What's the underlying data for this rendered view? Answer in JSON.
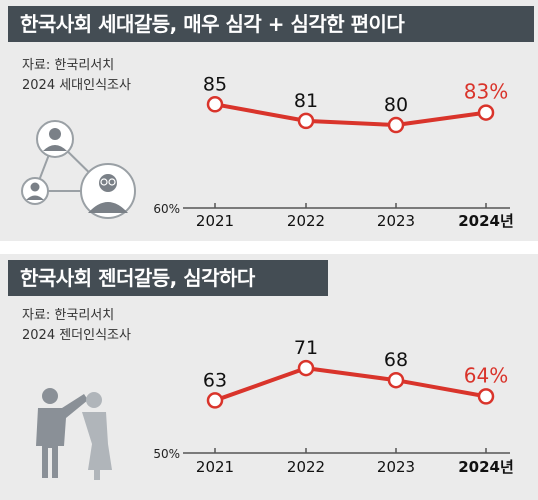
{
  "colors": {
    "panel_bg": "#ebebeb",
    "title_bg": "#444d54",
    "line": "#d9342b",
    "axis": "#555555"
  },
  "panels": [
    {
      "title": "한국사회 세대갈등, 매우 심각 + 심각한 편이다",
      "source_line1": "자료: 한국리서치",
      "source_line2": "2024 세대인식조사",
      "icon": "generation-network-icon"
    },
    {
      "title": "한국사회 젠더갈등, 심각하다",
      "source_line1": "자료: 한국리서치",
      "source_line2": "2024 젠더인식조사",
      "icon": "man-woman-icon"
    }
  ],
  "chart_data": [
    {
      "type": "line",
      "x": [
        "2021",
        "2022",
        "2023",
        "2024년"
      ],
      "values": [
        85,
        81,
        80,
        83
      ],
      "data_labels": [
        "85",
        "81",
        "80",
        "83%"
      ],
      "ylim": [
        60,
        87
      ],
      "y_axis_label": "60%",
      "highlight_last": true,
      "grid": false
    },
    {
      "type": "line",
      "x": [
        "2021",
        "2022",
        "2023",
        "2024년"
      ],
      "values": [
        63,
        71,
        68,
        64
      ],
      "data_labels": [
        "63",
        "71",
        "68",
        "64%"
      ],
      "ylim": [
        50,
        73
      ],
      "y_axis_label": "50%",
      "highlight_last": true,
      "grid": false
    }
  ]
}
